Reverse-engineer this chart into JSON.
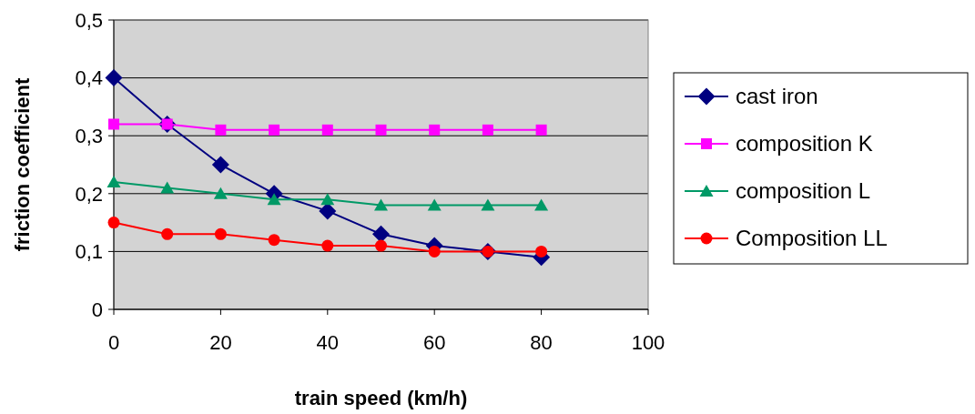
{
  "chart_data": {
    "type": "line",
    "xlabel": "train speed (km/h)",
    "ylabel": "friction coefficient",
    "x": [
      0,
      10,
      20,
      30,
      40,
      50,
      60,
      70,
      80
    ],
    "xlim": [
      0,
      100
    ],
    "xticks": [
      0,
      20,
      40,
      60,
      80,
      100
    ],
    "ylim": [
      0,
      0.5
    ],
    "yticks": [
      {
        "value": 0,
        "label": "0"
      },
      {
        "value": 0.1,
        "label": "0,1"
      },
      {
        "value": 0.2,
        "label": "0,2"
      },
      {
        "value": 0.3,
        "label": "0,3"
      },
      {
        "value": 0.4,
        "label": "0,4"
      },
      {
        "value": 0.5,
        "label": "0,5"
      }
    ],
    "grid": "y",
    "legend": "right",
    "series": [
      {
        "name": "cast iron",
        "color": "#000080",
        "marker": "diamond",
        "values": [
          0.4,
          0.32,
          0.25,
          0.2,
          0.17,
          0.13,
          0.11,
          0.1,
          0.09
        ]
      },
      {
        "name": "composition K",
        "color": "#ff00ff",
        "marker": "square",
        "values": [
          0.32,
          0.32,
          0.31,
          0.31,
          0.31,
          0.31,
          0.31,
          0.31,
          0.31
        ]
      },
      {
        "name": "composition L",
        "color": "#009966",
        "marker": "triangle",
        "values": [
          0.22,
          0.21,
          0.2,
          0.19,
          0.19,
          0.18,
          0.18,
          0.18,
          0.18
        ]
      },
      {
        "name": "Composition LL",
        "color": "#ff0000",
        "marker": "circle",
        "values": [
          0.15,
          0.13,
          0.13,
          0.12,
          0.11,
          0.11,
          0.1,
          0.1,
          0.1
        ]
      }
    ]
  }
}
